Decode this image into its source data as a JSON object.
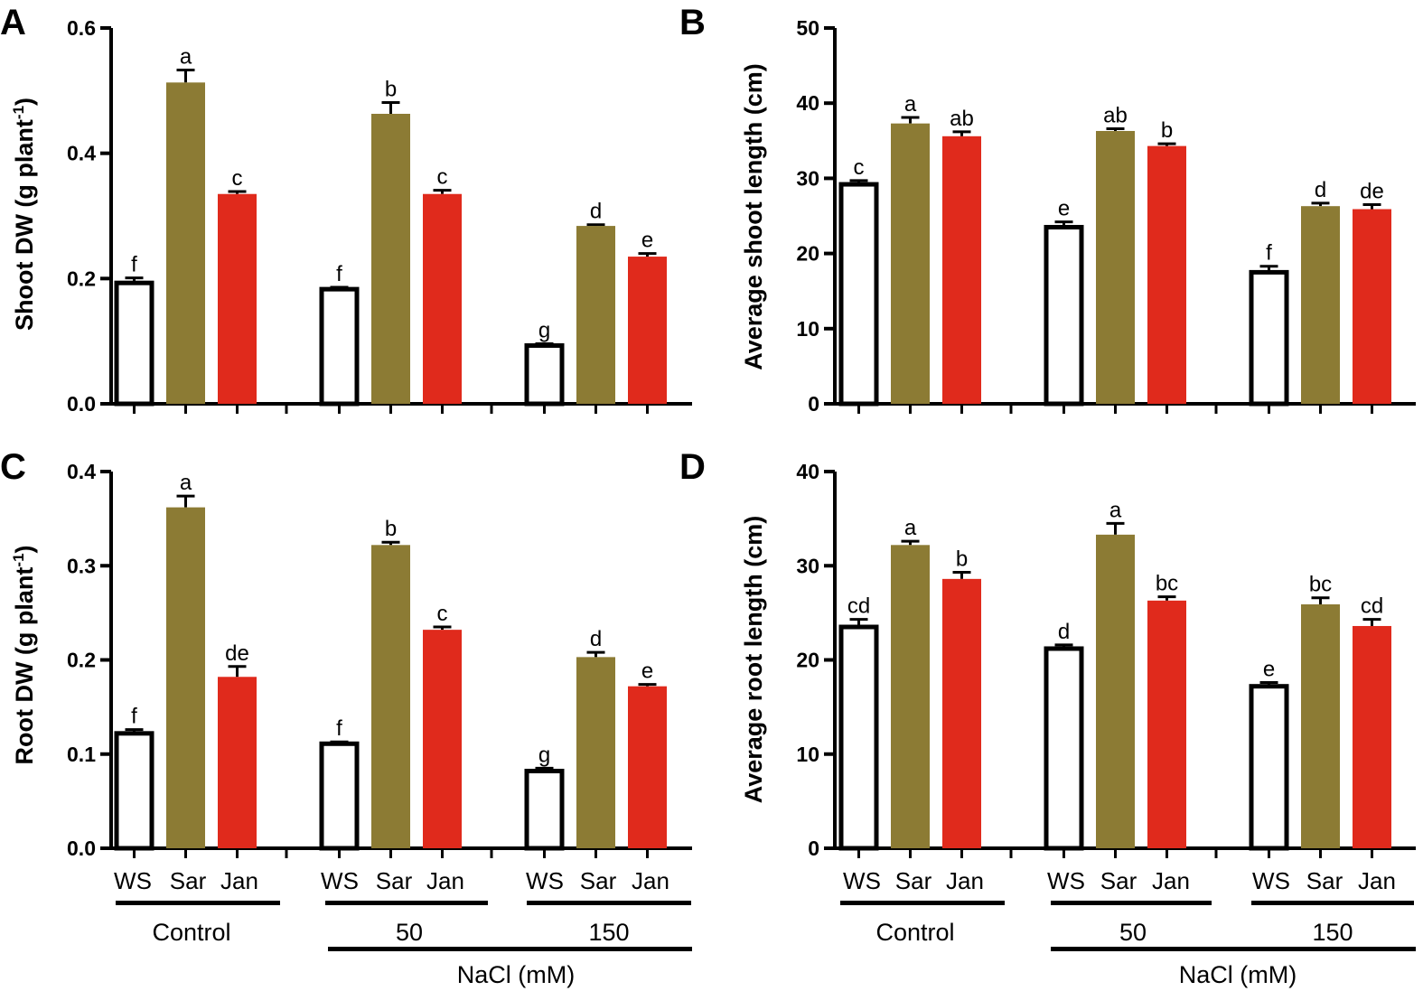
{
  "colors": {
    "WS": "#ffffff",
    "Sar": "#8c7b34",
    "Jan": "#e02a1c",
    "axis": "#000000"
  },
  "categories": [
    "WS",
    "Sar",
    "Jan"
  ],
  "groups": [
    "Control",
    "50",
    "150"
  ],
  "treatment_label": "NaCl (mM)",
  "chart_data": [
    {
      "panel": "A",
      "type": "bar",
      "ylabel_main": "Shoot DW (g plant",
      "ylabel_sup": "-1",
      "ylabel_end": ")",
      "ylim": [
        0,
        0.6
      ],
      "yticks": [
        "0.0",
        "0.2",
        "0.4",
        "0.6"
      ],
      "categories": [
        "WS",
        "Sar",
        "Jan"
      ],
      "groups": [
        "Control",
        "50",
        "150"
      ],
      "series": [
        {
          "name": "Control",
          "values": [
            0.193,
            0.513,
            0.335
          ],
          "errors": [
            0.008,
            0.02,
            0.004
          ],
          "letters": [
            "f",
            "a",
            "c"
          ]
        },
        {
          "name": "50",
          "values": [
            0.183,
            0.463,
            0.335
          ],
          "errors": [
            0.003,
            0.018,
            0.006
          ],
          "letters": [
            "f",
            "b",
            "c"
          ]
        },
        {
          "name": "150",
          "values": [
            0.093,
            0.284,
            0.235
          ],
          "errors": [
            0.003,
            0.002,
            0.005
          ],
          "letters": [
            "g",
            "d",
            "e"
          ]
        }
      ]
    },
    {
      "panel": "B",
      "type": "bar",
      "ylabel_main": "Average shoot length (cm)",
      "ylabel_sup": "",
      "ylabel_end": "",
      "ylim": [
        0,
        50
      ],
      "yticks": [
        "0",
        "10",
        "20",
        "30",
        "40",
        "50"
      ],
      "categories": [
        "WS",
        "Sar",
        "Jan"
      ],
      "groups": [
        "Control",
        "50",
        "150"
      ],
      "series": [
        {
          "name": "Control",
          "values": [
            29.2,
            37.3,
            35.6
          ],
          "errors": [
            0.5,
            0.8,
            0.6
          ],
          "letters": [
            "c",
            "a",
            "ab"
          ]
        },
        {
          "name": "50",
          "values": [
            23.5,
            36.3,
            34.3
          ],
          "errors": [
            0.7,
            0.3,
            0.3
          ],
          "letters": [
            "e",
            "ab",
            "b"
          ]
        },
        {
          "name": "150",
          "values": [
            17.5,
            26.3,
            25.9
          ],
          "errors": [
            0.8,
            0.4,
            0.6
          ],
          "letters": [
            "f",
            "d",
            "de"
          ]
        }
      ]
    },
    {
      "panel": "C",
      "type": "bar",
      "ylabel_main": "Root DW (g plant",
      "ylabel_sup": "-1",
      "ylabel_end": ")",
      "ylim": [
        0,
        0.4
      ],
      "yticks": [
        "0.0",
        "0.1",
        "0.2",
        "0.3",
        "0.4"
      ],
      "categories": [
        "WS",
        "Sar",
        "Jan"
      ],
      "groups": [
        "Control",
        "50",
        "150"
      ],
      "series": [
        {
          "name": "Control",
          "values": [
            0.122,
            0.362,
            0.182
          ],
          "errors": [
            0.004,
            0.012,
            0.011
          ],
          "letters": [
            "f",
            "a",
            "de"
          ]
        },
        {
          "name": "50",
          "values": [
            0.111,
            0.322,
            0.232
          ],
          "errors": [
            0.002,
            0.003,
            0.003
          ],
          "letters": [
            "f",
            "b",
            "c"
          ]
        },
        {
          "name": "150",
          "values": [
            0.082,
            0.203,
            0.172
          ],
          "errors": [
            0.003,
            0.005,
            0.002
          ],
          "letters": [
            "g",
            "d",
            "e"
          ]
        }
      ]
    },
    {
      "panel": "D",
      "type": "bar",
      "ylabel_main": "Average root length (cm)",
      "ylabel_sup": "",
      "ylabel_end": "",
      "ylim": [
        0,
        40
      ],
      "yticks": [
        "0",
        "10",
        "20",
        "30",
        "40"
      ],
      "categories": [
        "WS",
        "Sar",
        "Jan"
      ],
      "groups": [
        "Control",
        "50",
        "150"
      ],
      "series": [
        {
          "name": "Control",
          "values": [
            23.5,
            32.2,
            28.6
          ],
          "errors": [
            0.8,
            0.4,
            0.7
          ],
          "letters": [
            "cd",
            "a",
            "b"
          ]
        },
        {
          "name": "50",
          "values": [
            21.2,
            33.3,
            26.3
          ],
          "errors": [
            0.4,
            1.2,
            0.4
          ],
          "letters": [
            "d",
            "a",
            "bc"
          ]
        },
        {
          "name": "150",
          "values": [
            17.2,
            25.9,
            23.6
          ],
          "errors": [
            0.4,
            0.7,
            0.7
          ],
          "letters": [
            "e",
            "bc",
            "cd"
          ]
        }
      ]
    }
  ]
}
